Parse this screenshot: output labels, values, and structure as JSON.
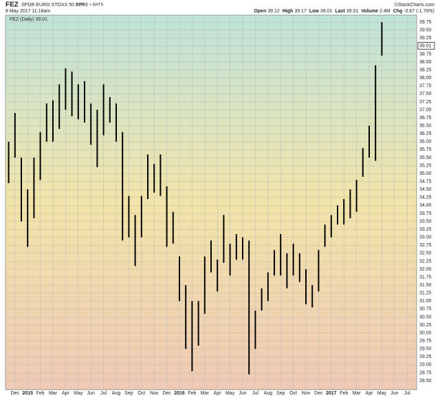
{
  "chart_data": {
    "type": "ohlc",
    "title": "FEZ",
    "subtitle": "SPDR EURO STOXX 50 ETF",
    "exchange": "NYSE + BATS",
    "date": "8 May 2017 11:18am",
    "source": "©StockCharts.com",
    "stats": [
      {
        "label": "Open",
        "value": 39.12
      },
      {
        "label": "High",
        "value": 39.17
      },
      {
        "label": "Low",
        "value": 39.01
      },
      {
        "label": "Last",
        "value": 39.01
      },
      {
        "label": "Volume",
        "value": "2.4M"
      },
      {
        "label": "Chg",
        "value": "-0.67 (-1.70%)"
      }
    ],
    "legend": "FEZ (Daily) 39.01",
    "last_value": 39.01,
    "color": "#000000",
    "categories": [
      null,
      "Dec",
      null,
      "2015",
      null,
      "Feb",
      null,
      "Mar",
      null,
      "Apr",
      null,
      "May",
      null,
      "Jun",
      null,
      "Jul",
      null,
      "Aug",
      null,
      "Sep",
      null,
      "Oct",
      null,
      "Nov",
      null,
      "Dec",
      null,
      "2016",
      null,
      "Feb",
      null,
      "Mar",
      null,
      "Apr",
      null,
      "May",
      null,
      "Jun",
      null,
      "Jul",
      null,
      "Aug",
      null,
      "Sep",
      null,
      "Oct",
      null,
      "Nov",
      null,
      "Dec",
      null,
      "2017",
      null,
      "Feb",
      null,
      "Mar",
      null,
      "Apr",
      null,
      "May",
      null,
      "Jun",
      null,
      "Jul",
      null
    ],
    "high": [
      36.0,
      36.9,
      35.5,
      34.5,
      35.5,
      36.3,
      37.2,
      37.3,
      37.8,
      38.3,
      38.2,
      37.8,
      37.9,
      37.2,
      37.0,
      37.8,
      37.4,
      37.2,
      36.3,
      34.3,
      33.7,
      34.3,
      35.6,
      35.3,
      35.6,
      34.6,
      33.8,
      32.4,
      31.5,
      31.0,
      31.0,
      32.4,
      32.9,
      32.3,
      33.7,
      32.8,
      33.1,
      33.0,
      32.9,
      30.7,
      31.4,
      31.9,
      32.6,
      33.1,
      32.5,
      32.8,
      32.5,
      32.0,
      31.5,
      32.6,
      33.4,
      33.7,
      34.0,
      34.2,
      34.5,
      34.8,
      35.8,
      36.5,
      38.4,
      39.75,
      null,
      null,
      null,
      null,
      null
    ],
    "low": [
      34.7,
      35.5,
      33.5,
      32.7,
      33.6,
      34.8,
      36.0,
      36.0,
      36.4,
      37.0,
      36.8,
      36.7,
      36.6,
      35.9,
      35.2,
      36.2,
      36.6,
      36.0,
      32.9,
      33.0,
      32.1,
      33.0,
      34.2,
      34.4,
      34.3,
      32.7,
      32.8,
      31.0,
      29.5,
      28.8,
      29.6,
      30.6,
      31.9,
      31.3,
      32.2,
      31.8,
      32.3,
      32.3,
      28.7,
      29.5,
      30.7,
      31.0,
      31.8,
      31.8,
      31.4,
      31.8,
      31.6,
      30.9,
      30.8,
      31.3,
      32.7,
      33.0,
      33.4,
      33.4,
      33.6,
      33.8,
      34.9,
      35.5,
      35.4,
      38.7,
      null,
      null,
      null,
      null,
      null
    ],
    "ylim": [
      28.22,
      39.97
    ],
    "yticks": [
      {
        "value": 28.5,
        "label": "28.50"
      },
      {
        "value": 28.75,
        "label": "28.75"
      },
      {
        "value": 29,
        "label": "29.00"
      },
      {
        "value": 29.25,
        "label": "29.25"
      },
      {
        "value": 29.5,
        "label": "29.50"
      },
      {
        "value": 29.75,
        "label": "29.75"
      },
      {
        "value": 30,
        "label": "30.00"
      },
      {
        "value": 30.25,
        "label": "30.25"
      },
      {
        "value": 30.5,
        "label": "30.50"
      },
      {
        "value": 30.75,
        "label": "30.75"
      },
      {
        "value": 31,
        "label": "31.00"
      },
      {
        "value": 31.25,
        "label": "31.25"
      },
      {
        "value": 31.5,
        "label": "31.50"
      },
      {
        "value": 31.75,
        "label": "31.75"
      },
      {
        "value": 32,
        "label": "32.00"
      },
      {
        "value": 32.25,
        "label": "32.25"
      },
      {
        "value": 32.5,
        "label": "32.50"
      },
      {
        "value": 32.75,
        "label": "32.75"
      },
      {
        "value": 33,
        "label": "33.00"
      },
      {
        "value": 33.25,
        "label": "33.25"
      },
      {
        "value": 33.5,
        "label": "33.50"
      },
      {
        "value": 33.75,
        "label": "33.75"
      },
      {
        "value": 34,
        "label": "34.00"
      },
      {
        "value": 34.25,
        "label": "34.25"
      },
      {
        "value": 34.5,
        "label": "34.50"
      },
      {
        "value": 34.75,
        "label": "34.75"
      },
      {
        "value": 35,
        "label": "35.00"
      },
      {
        "value": 35.25,
        "label": "35.25"
      },
      {
        "value": 35.5,
        "label": "35.50"
      },
      {
        "value": 35.75,
        "label": "35.75"
      },
      {
        "value": 36,
        "label": "36.00"
      },
      {
        "value": 36.25,
        "label": "36.25"
      },
      {
        "value": 36.5,
        "label": "36.50"
      },
      {
        "value": 36.75,
        "label": "36.75"
      },
      {
        "value": 37,
        "label": "37.00"
      },
      {
        "value": 37.25,
        "label": "37.25"
      },
      {
        "value": 37.5,
        "label": "37.50"
      },
      {
        "value": 37.75,
        "label": "37.75"
      },
      {
        "value": 38,
        "label": "38.00"
      },
      {
        "value": 38.25,
        "label": "38.25"
      },
      {
        "value": 38.5,
        "label": "38.50"
      },
      {
        "value": 38.75,
        "label": "38.75"
      },
      {
        "value": 39,
        "label": "39.00"
      },
      {
        "value": 39.25,
        "label": "39.25"
      },
      {
        "value": 39.5,
        "label": "39.50"
      },
      {
        "value": 39.75,
        "label": "39.75"
      }
    ],
    "grid": true
  }
}
